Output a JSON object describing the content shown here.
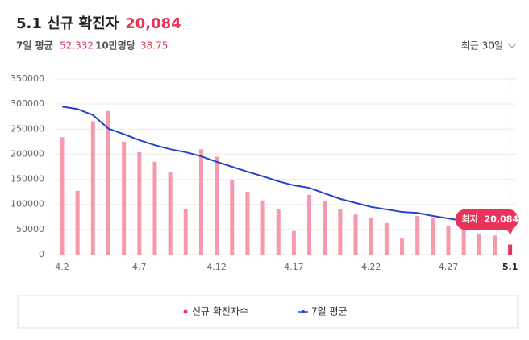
{
  "header": {
    "title": "5.1 신규 확진자",
    "headline_value": "20,084",
    "avg_label": "7일 평균",
    "avg_value": "52,332",
    "per_label": "10만명당",
    "per_value": "38.75",
    "period": "최근 30일"
  },
  "chart_data": {
    "type": "bar-line",
    "categories": [
      "4.2",
      null,
      null,
      null,
      null,
      "4.7",
      null,
      null,
      null,
      null,
      "4.12",
      null,
      null,
      null,
      null,
      "4.17",
      null,
      null,
      null,
      null,
      "4.22",
      null,
      null,
      null,
      null,
      "4.27",
      null,
      null,
      null,
      "5.1"
    ],
    "series": [
      {
        "name": "신규 확진자수",
        "type": "bar",
        "color": "#f59aac",
        "highlight_color": "#e8345a",
        "values": [
          234000,
          127000,
          266000,
          286000,
          225000,
          204000,
          185000,
          164000,
          90000,
          210000,
          195000,
          148000,
          125000,
          108000,
          91000,
          47000,
          119000,
          107000,
          90000,
          80000,
          74000,
          63000,
          32000,
          77000,
          74000,
          57000,
          51000,
          42000,
          38000,
          20084
        ]
      },
      {
        "name": "7일 평균",
        "type": "line",
        "color": "#2443cc",
        "values": [
          295000,
          290000,
          278000,
          251000,
          240000,
          228000,
          218000,
          210000,
          204000,
          196000,
          185000,
          175000,
          165000,
          156000,
          146000,
          138000,
          133000,
          122000,
          111000,
          103000,
          95000,
          90000,
          85000,
          83000,
          77000,
          72000,
          67000,
          62000,
          57000,
          52332
        ]
      }
    ],
    "annotation": {
      "label": "최저",
      "value_label": "20,084"
    },
    "ylim": [
      0,
      350000
    ],
    "yticks": [
      0,
      50000,
      100000,
      150000,
      200000,
      250000,
      300000,
      350000
    ],
    "grid": true
  }
}
